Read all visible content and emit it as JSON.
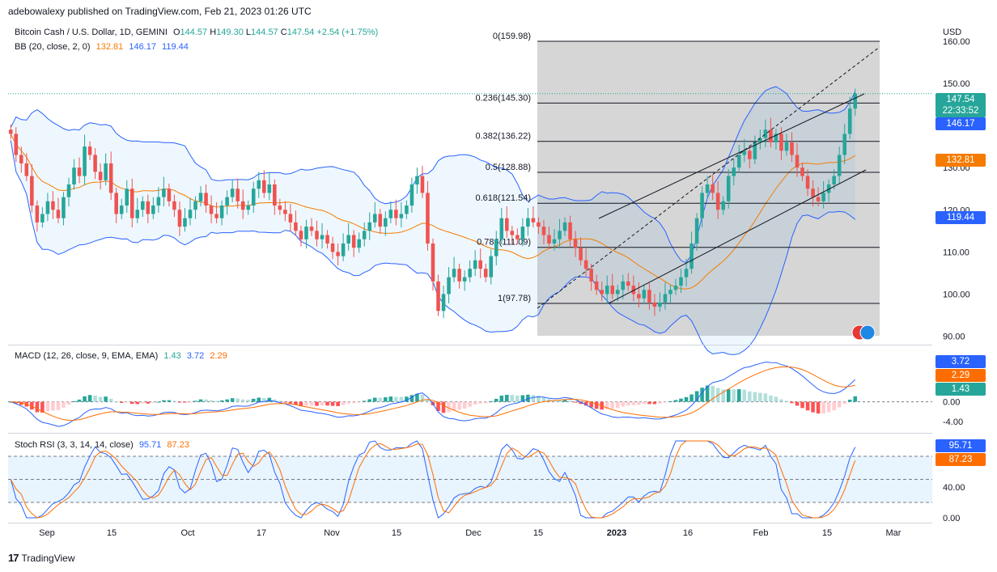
{
  "header": {
    "publisher_note": "adebowalexy published on TradingView.com, Feb 21, 2023 01:26 UTC"
  },
  "main_legend": {
    "symbol": "Bitcoin Cash / U.S. Dollar, 1D, GEMINI",
    "o_label": "O",
    "o_val": "144.57",
    "h_label": "H",
    "h_val": "149.30",
    "l_label": "L",
    "l_val": "144.57",
    "c_label": "C",
    "c_val": "147.54",
    "change": "+2.54 (+1.75%)"
  },
  "bb_legend": {
    "label": "BB (20, close, 2, 0)",
    "basis": "132.81",
    "upper": "146.17",
    "lower": "119.44"
  },
  "macd_legend": {
    "label": "MACD (12, 26, close, 9, EMA, EMA)",
    "hist": "1.43",
    "macd": "3.72",
    "signal": "2.29"
  },
  "stoch_legend": {
    "label": "Stoch RSI (3, 3, 14, 14, close)",
    "k": "95.71",
    "d": "87.23"
  },
  "price_axis": {
    "currency": "USD",
    "ticks": [
      "160.00",
      "150.00",
      "140.00",
      "130.00",
      "120.00",
      "110.00",
      "100.00",
      "90.00"
    ],
    "tick_values": [
      160,
      150,
      140,
      130,
      120,
      110,
      100,
      90
    ]
  },
  "macd_axis": {
    "ticks": [
      "0.00",
      "-4.00"
    ],
    "tick_values": [
      0,
      -4
    ]
  },
  "stoch_axis": {
    "ticks": [
      "40.00",
      "0.00"
    ],
    "tick_values": [
      40,
      0
    ]
  },
  "price_tags": {
    "last": "147.54",
    "countdown": "22:33:52",
    "bb_upper": "146.17",
    "bb_basis": "132.81",
    "bb_lower": "119.44"
  },
  "macd_tags": {
    "macd": "3.72",
    "signal": "2.29",
    "hist": "1.43"
  },
  "stoch_tags": {
    "k": "95.71",
    "d": "87.23"
  },
  "time_axis": {
    "labels": [
      "Sep",
      "15",
      "Oct",
      "17",
      "Nov",
      "15",
      "Dec",
      "15",
      "2023",
      "16",
      "Feb",
      "15",
      "Mar"
    ]
  },
  "footer": {
    "brand": "TradingView"
  },
  "colors": {
    "up": "#26a69a",
    "down": "#ef5350",
    "bb_upper": "#2962ff",
    "bb_basis": "#f57c00",
    "macd": "#2962ff",
    "signal": "#ff6d00",
    "stoch_k": "#2962ff",
    "stoch_d": "#ff6d00",
    "fib_zone": "#d1d1d1"
  },
  "chart_data": {
    "type": "candlestick",
    "series_name": "Bitcoin Cash / U.S. Dollar",
    "interval": "1D",
    "ylim": [
      88,
      164
    ],
    "fibonacci": {
      "levels": [
        {
          "label": "0(159.98)",
          "value": 159.98
        },
        {
          "label": "0.236(145.30)",
          "value": 145.3
        },
        {
          "label": "0.382(136.22)",
          "value": 136.22
        },
        {
          "label": "0.5(128.88)",
          "value": 128.88
        },
        {
          "label": "0.618(121.54)",
          "value": 121.54
        },
        {
          "label": "0.786(111.09)",
          "value": 111.09
        },
        {
          "label": "1(97.78)",
          "value": 97.78
        }
      ]
    },
    "closes_approx": [
      138,
      133,
      131,
      128,
      121,
      117,
      119,
      122,
      120,
      118,
      123,
      126,
      130,
      128,
      135,
      133,
      129,
      127,
      131,
      124,
      119,
      121,
      125,
      118,
      120,
      122,
      119,
      121,
      123,
      125,
      122,
      120,
      116,
      118,
      120,
      122,
      124,
      121,
      119,
      118,
      121,
      123,
      125,
      122,
      120,
      121,
      125,
      127,
      124,
      126,
      121,
      120,
      119,
      117,
      115,
      113,
      116,
      115,
      113,
      114,
      112,
      110,
      109,
      112,
      114,
      111,
      113,
      115,
      117,
      119,
      116,
      118,
      120,
      118,
      119,
      121,
      126,
      128,
      124,
      112,
      103,
      96,
      100,
      104,
      106,
      103,
      104,
      106,
      108,
      106,
      104,
      109,
      113,
      118,
      115,
      114,
      113,
      116,
      118,
      117,
      116,
      114,
      112,
      113,
      115,
      117,
      113,
      111,
      108,
      106,
      103,
      101,
      100,
      102,
      100,
      101,
      103,
      102,
      100,
      99,
      101,
      98,
      97,
      98,
      100,
      101,
      102,
      104,
      106,
      112,
      118,
      124,
      126,
      124,
      120,
      122,
      128,
      130,
      133,
      134,
      132,
      136,
      137,
      139,
      136,
      138,
      134,
      136,
      133,
      130,
      128,
      125,
      123,
      122,
      124,
      126,
      128,
      133,
      138,
      144,
      147.54
    ],
    "bb_upper_last": 146.17,
    "bb_basis_last": 132.81,
    "bb_lower_last": 119.44,
    "macd_last": 3.72,
    "signal_last": 2.29,
    "hist_last": 1.43,
    "stoch_k_last": 95.71,
    "stoch_d_last": 87.23
  }
}
